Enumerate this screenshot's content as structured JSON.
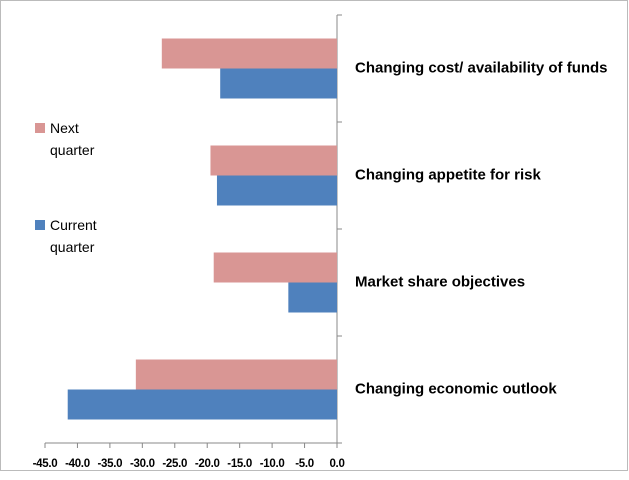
{
  "chart_data": {
    "type": "barh",
    "categories": [
      "Changing cost/ availability of funds",
      "Changing appetite for risk",
      "Market share objectives",
      "Changing economic outlook"
    ],
    "series": [
      {
        "name": "Next quarter",
        "color": "#d99694",
        "values": [
          -27,
          -19.5,
          -19,
          -31
        ]
      },
      {
        "name": "Current quarter",
        "color": "#4f81bd",
        "values": [
          -18,
          -18.5,
          -7.5,
          -41.5
        ]
      }
    ],
    "xlim": [
      -45,
      0
    ],
    "xticks": [
      {
        "value": -45,
        "label": "-45.0"
      },
      {
        "value": -40,
        "label": "-40.0"
      },
      {
        "value": -35,
        "label": "-35.0"
      },
      {
        "value": -30,
        "label": "-30.0"
      },
      {
        "value": -25,
        "label": "-25.0"
      },
      {
        "value": -20,
        "label": "-20.0"
      },
      {
        "value": -15,
        "label": "-15.0"
      },
      {
        "value": -10,
        "label": "-10.0"
      },
      {
        "value": -5,
        "label": "-5.0"
      },
      {
        "value": 0,
        "label": "0.0"
      }
    ],
    "legend": "left"
  }
}
